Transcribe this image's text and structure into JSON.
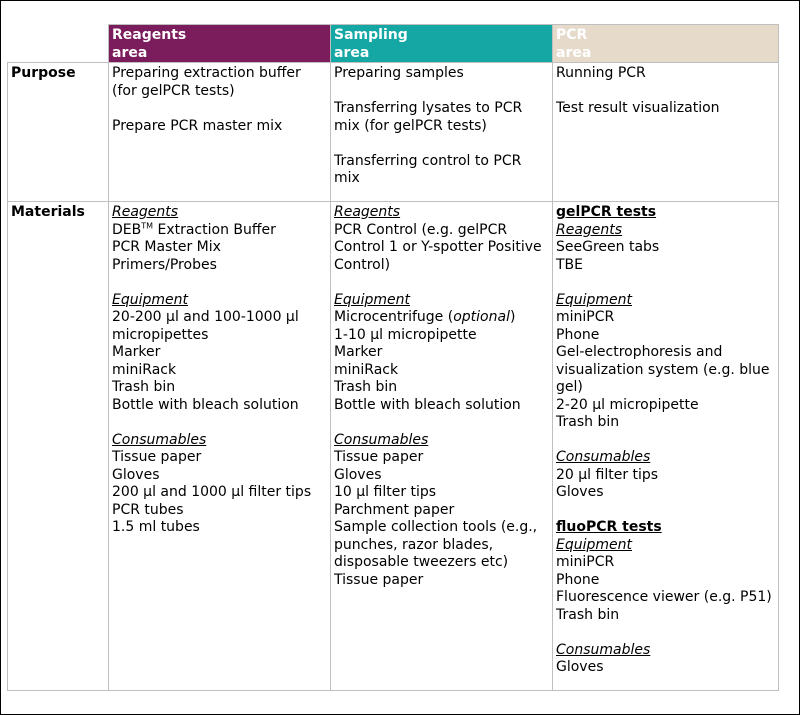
{
  "headers": {
    "reagents": [
      "Reagents",
      "area"
    ],
    "sampling": [
      "Sampling",
      "area"
    ],
    "pcr": [
      "PCR",
      "area"
    ]
  },
  "colors": {
    "reagents": "#7b1c5c",
    "sampling": "#14a7a3",
    "pcr": "#e6dacb"
  },
  "purpose": {
    "label": "Purpose",
    "reagents": [
      "Preparing extraction buffer",
      "(for gelPCR tests)",
      "",
      "Prepare PCR master mix"
    ],
    "sampling": [
      "Preparing samples",
      "",
      "Transferring lysates to PCR",
      "mix (for gelPCR tests)",
      "",
      "Transferring control to PCR",
      "mix"
    ],
    "pcr": [
      "Running PCR",
      "",
      "Test result visualization"
    ]
  },
  "materials": {
    "label": "Materials",
    "reagents": {
      "reagents_heading": "Reagents",
      "deb_prefix": "DEB",
      "deb_sup": "TM",
      "deb_suffix": " Extraction Buffer",
      "reagents_items": [
        "PCR Master Mix",
        "Primers/Probes"
      ],
      "equipment_heading": "Equipment",
      "equipment_items": [
        "20-200 µl and 100-1000 µl",
        "micropipettes",
        "Marker",
        "miniRack",
        "Trash bin",
        "Bottle with bleach solution"
      ],
      "consumables_heading": "Consumables",
      "consumables_items": [
        "Tissue paper",
        "Gloves",
        "200 µl and 1000 µl filter tips",
        "PCR tubes",
        "1.5 ml tubes"
      ]
    },
    "sampling": {
      "reagents_heading": "Reagents",
      "reagents_items": [
        "PCR Control (e.g. gelPCR",
        "Control 1 or Y-spotter Positive",
        "Control)"
      ],
      "equipment_heading": "Equipment",
      "microcentrifuge": "Microcentrifuge (",
      "optional": "optional",
      "microcentrifuge_end": ")",
      "equipment_items": [
        "1-10 µl micropipette",
        "Marker",
        "miniRack",
        "Trash bin",
        "Bottle with bleach solution"
      ],
      "consumables_heading": "Consumables",
      "consumables_items": [
        "Tissue paper",
        "Gloves",
        "10 µl filter tips",
        "Parchment paper",
        "Sample collection tools (e.g.,",
        "punches, razor blades,",
        "disposable tweezers etc)",
        "Tissue paper"
      ]
    },
    "pcr": {
      "gel_heading": "gelPCR tests",
      "gel_reagents_heading": "Reagents",
      "gel_reagents_items": [
        "SeeGreen tabs",
        "TBE"
      ],
      "gel_equipment_heading": "Equipment",
      "gel_equipment_items": [
        "miniPCR",
        "Phone",
        "Gel-electrophoresis and",
        "visualization system (e.g. blue",
        "gel)",
        "2-20 µl micropipette",
        "Trash bin"
      ],
      "gel_consumables_heading": "Consumables",
      "gel_consumables_items": [
        "20 µl filter tips",
        "Gloves"
      ],
      "fluo_heading": "fluoPCR tests",
      "fluo_equipment_heading": "Equipment",
      "fluo_equipment_items": [
        "miniPCR",
        "Phone",
        "Fluorescence viewer (e.g. P51)",
        "Trash bin"
      ],
      "fluo_consumables_heading": "Consumables",
      "fluo_consumables_items": [
        "Gloves"
      ]
    }
  }
}
